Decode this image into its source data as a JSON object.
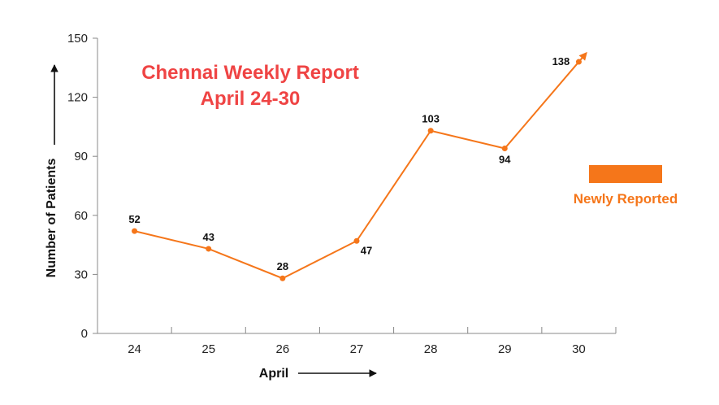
{
  "chart_data": {
    "type": "line",
    "title": "Chennai Weekly Report",
    "subtitle": "April 24-30",
    "xlabel": "April",
    "ylabel": "Number of Patients",
    "categories": [
      "24",
      "25",
      "26",
      "27",
      "28",
      "29",
      "30"
    ],
    "series": [
      {
        "name": "Newly Reported",
        "values": [
          52,
          43,
          28,
          47,
          103,
          94,
          138
        ]
      }
    ],
    "ylim": [
      0,
      150
    ],
    "yticks": [
      0,
      30,
      60,
      90,
      120,
      150
    ],
    "grid": false,
    "legend_position": "right",
    "colors": {
      "series": "#f5761a",
      "title": "#ef4444",
      "legend_text": "#f5761a",
      "axis": "#888888"
    }
  }
}
